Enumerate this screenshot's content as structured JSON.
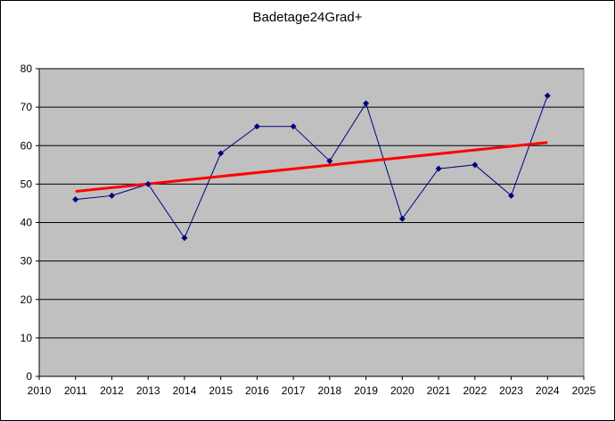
{
  "chart_data": {
    "type": "line",
    "title": "Badetage24Grad+",
    "xlabel": "",
    "ylabel": "",
    "xlim": [
      2010,
      2025
    ],
    "ylim": [
      0,
      80
    ],
    "x_ticks": [
      2010,
      2011,
      2012,
      2013,
      2014,
      2015,
      2016,
      2017,
      2018,
      2019,
      2020,
      2021,
      2022,
      2023,
      2024,
      2025
    ],
    "y_ticks": [
      0,
      10,
      20,
      30,
      40,
      50,
      60,
      70,
      80
    ],
    "grid": "horizontal",
    "legend": "none",
    "plot_background": "#c0c0c0",
    "series": [
      {
        "color": "#000080",
        "marker": "diamond",
        "x": [
          2011,
          2012,
          2013,
          2014,
          2015,
          2016,
          2017,
          2018,
          2019,
          2020,
          2021,
          2022,
          2023,
          2024
        ],
        "values": [
          46,
          47,
          50,
          36,
          58,
          65,
          65,
          56,
          71,
          41,
          54,
          55,
          47,
          73
        ]
      }
    ],
    "trendline": {
      "type": "linear",
      "color": "#ff0000",
      "x": [
        2011,
        2024
      ],
      "values": [
        48.1,
        60.8
      ]
    }
  }
}
